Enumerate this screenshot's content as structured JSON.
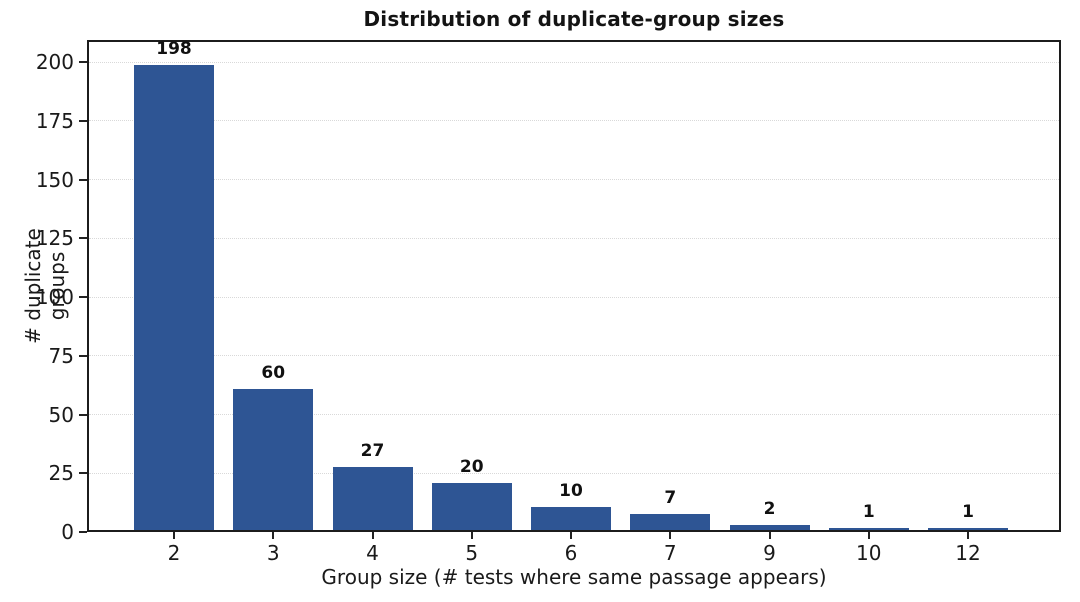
{
  "chart_data": {
    "type": "bar",
    "title": "Distribution of duplicate-group sizes",
    "xlabel": "Group size (# tests where same passage appears)",
    "ylabel": "# duplicate groups",
    "categories": [
      "2",
      "3",
      "4",
      "5",
      "6",
      "7",
      "9",
      "10",
      "12"
    ],
    "values": [
      198,
      60,
      27,
      20,
      10,
      7,
      2,
      1,
      1
    ],
    "value_labels": [
      "198",
      "60",
      "27",
      "20",
      "10",
      "7",
      "2",
      "1",
      "1"
    ],
    "yticks": [
      0,
      25,
      50,
      75,
      100,
      125,
      150,
      175,
      200
    ],
    "ylim": [
      0,
      209.4
    ],
    "legend": null,
    "grid": "horizontal dotted",
    "colors": {
      "bar": "#2e5594",
      "axis": "#1c1c1c",
      "gridline": "#d9d9d9",
      "text": "#1a1a1a"
    }
  }
}
